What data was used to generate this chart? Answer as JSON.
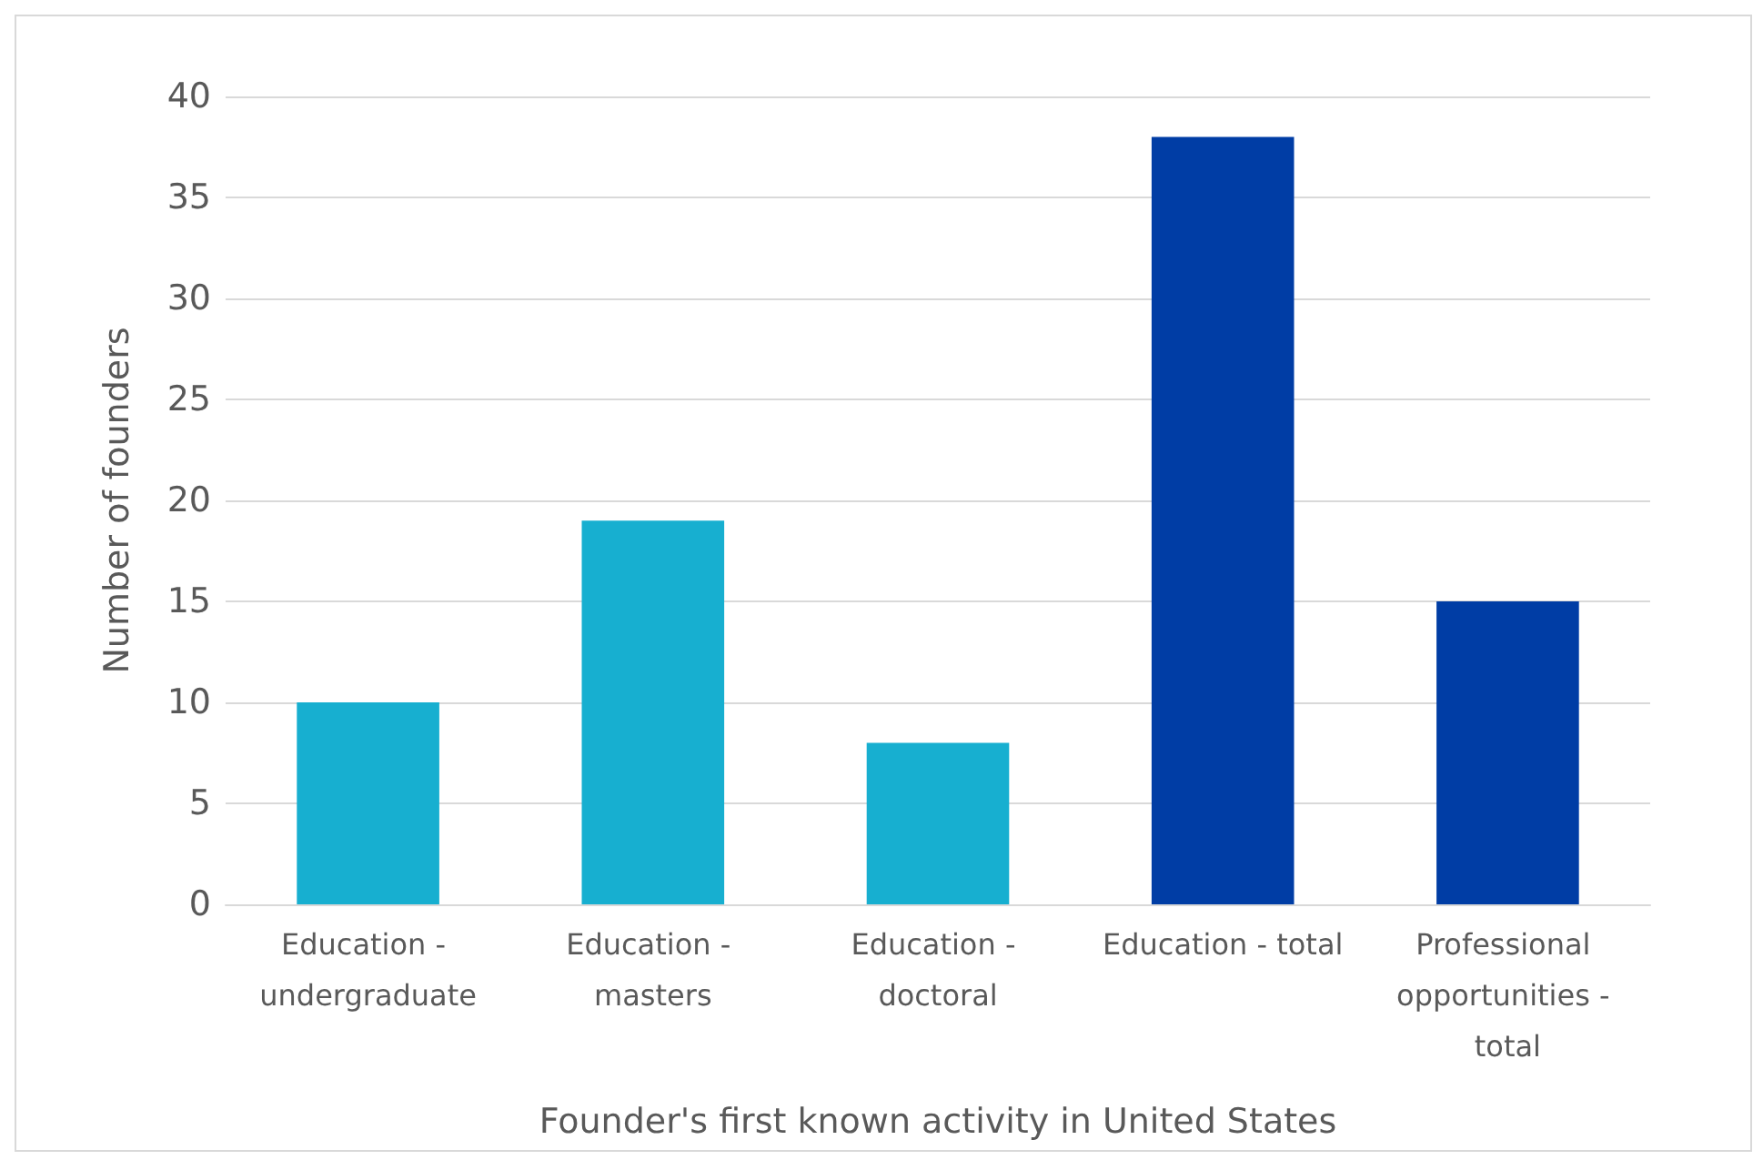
{
  "chart_data": {
    "type": "bar",
    "xlabel": "Founder's first known activity in United States",
    "ylabel": "Number of founders",
    "categories": [
      "Education - undergraduate",
      "Education - masters",
      "Education - doctoral",
      "Education - total",
      "Professional opportunities - total"
    ],
    "values": [
      10,
      19,
      8,
      38,
      15
    ],
    "colors": [
      "#17afd0",
      "#17afd0",
      "#17afd0",
      "#003da5",
      "#003da5"
    ],
    "ylim": [
      0,
      40
    ],
    "yticks": [
      0,
      5,
      10,
      15,
      20,
      25,
      30,
      35,
      40
    ],
    "grid": "y"
  }
}
